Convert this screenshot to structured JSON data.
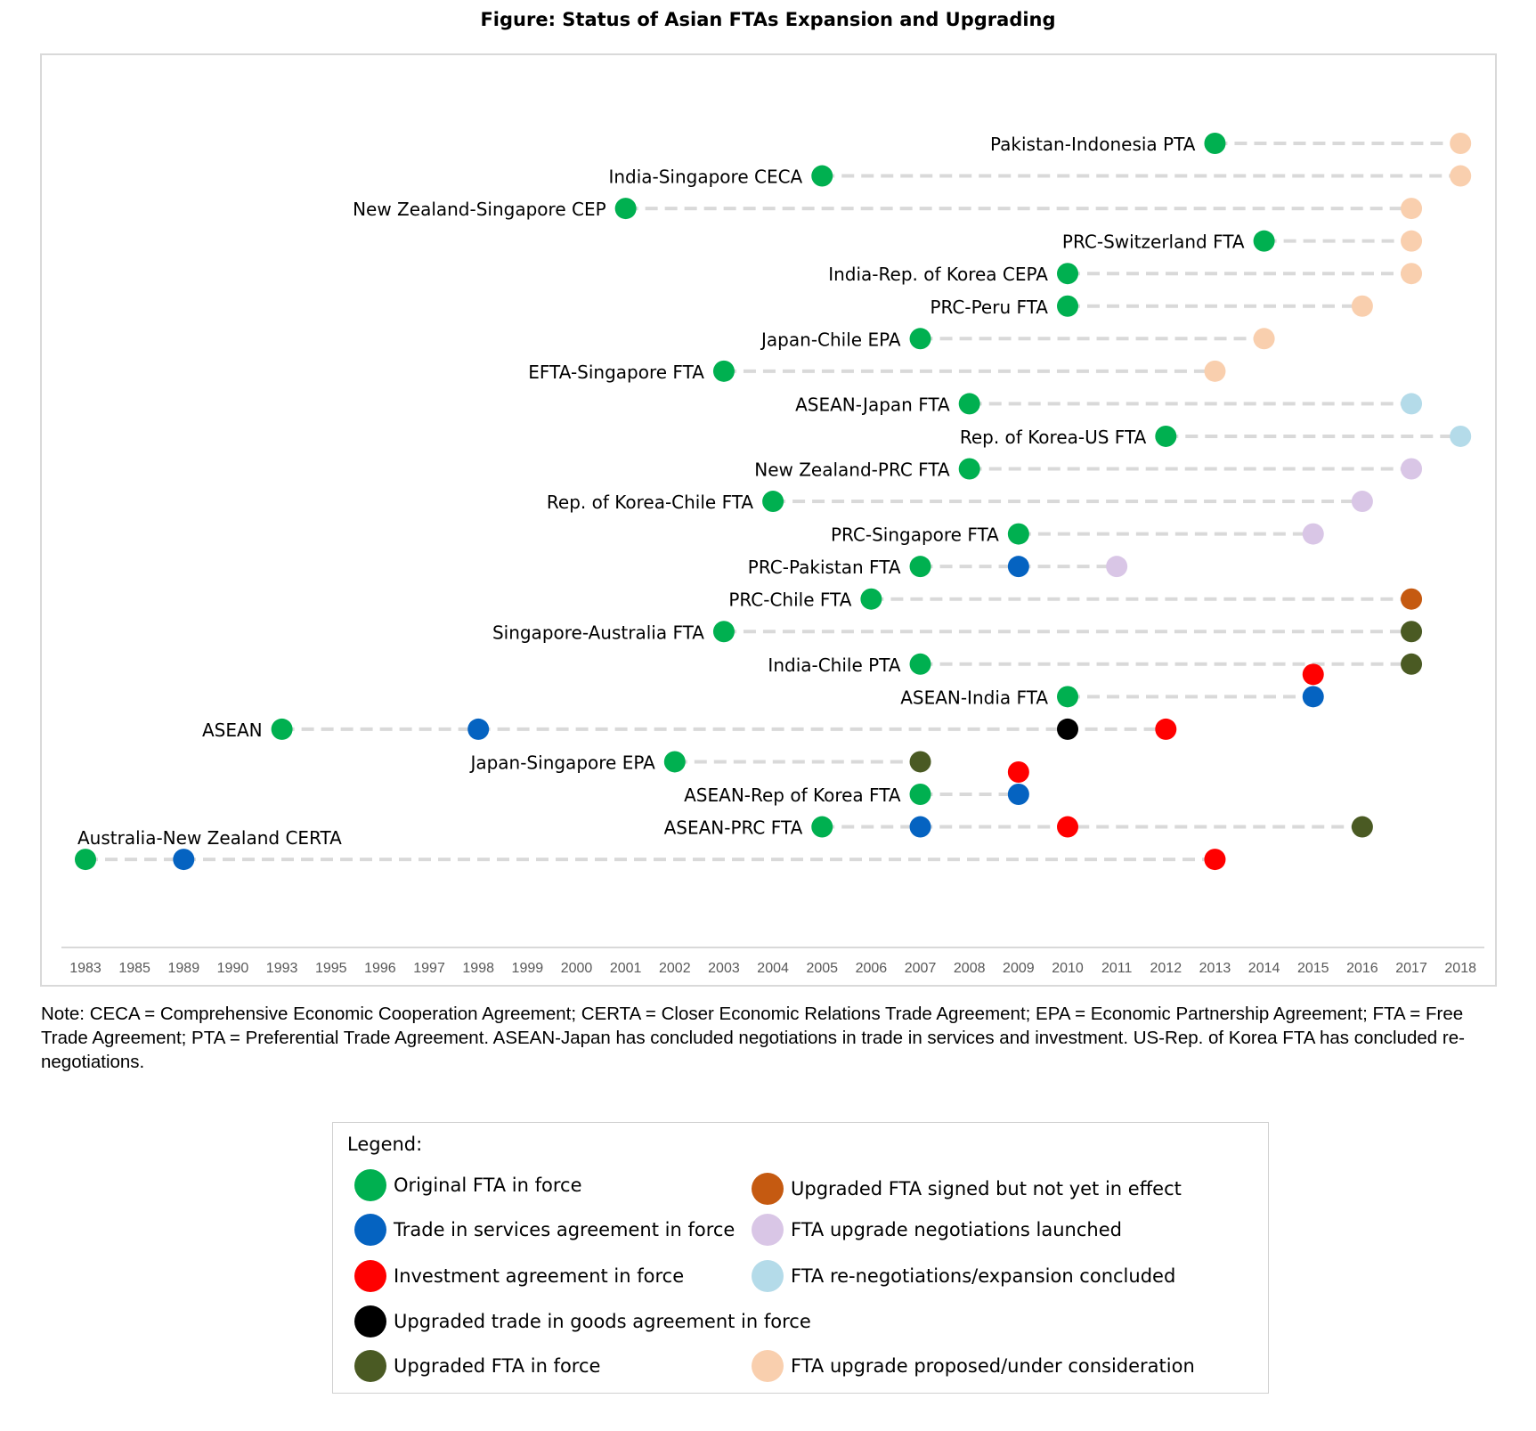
{
  "figure_title": "Figure: Status of Asian FTAs Expansion and Upgrading",
  "note": "Note: CECA = Comprehensive Economic Cooperation Agreement; CERTA =  Closer Economic Relations Trade Agreement; EPA =  Economic Partnership Agreement; FTA = Free Trade Agreement; PTA = Preferential Trade Agreement. ASEAN-Japan has concluded negotiations in trade in services and investment. US-Rep. of Korea FTA has concluded re-negotiations.",
  "legend": {
    "title": "Legend:",
    "items": [
      {
        "key": "original",
        "label": "Original FTA in force",
        "color": "#00b050"
      },
      {
        "key": "services",
        "label": "Trade in services agreement in force",
        "color": "#0563c1"
      },
      {
        "key": "investment",
        "label": "Investment agreement in force",
        "color": "#ff0000"
      },
      {
        "key": "goods_upgrade",
        "label": "Upgraded trade in goods agreement in force",
        "color": "#000000"
      },
      {
        "key": "upgraded",
        "label": "Upgraded FTA in force",
        "color": "#4a5a23"
      },
      {
        "key": "signed",
        "label": "Upgraded FTA signed but not yet in effect",
        "color": "#c55a11"
      },
      {
        "key": "launched",
        "label": "FTA upgrade negotiations launched",
        "color": "#d9c6e6"
      },
      {
        "key": "concluded",
        "label": "FTA re-negotiations/expansion concluded",
        "color": "#b4dbe9"
      },
      {
        "key": "proposed",
        "label": "FTA upgrade proposed/under consideration",
        "color": "#f9cfae"
      }
    ]
  },
  "chart_data": {
    "type": "scatter",
    "title": "Figure: Status of Asian FTAs Expansion and Upgrading",
    "x_categories": [
      "1983",
      "1985",
      "1989",
      "1990",
      "1993",
      "1995",
      "1996",
      "1997",
      "1998",
      "1999",
      "2000",
      "2001",
      "2002",
      "2003",
      "2004",
      "2005",
      "2006",
      "2007",
      "2008",
      "2009",
      "2010",
      "2011",
      "2012",
      "2013",
      "2014",
      "2015",
      "2016",
      "2017",
      "2018"
    ],
    "grid": false,
    "legend_position": "bottom",
    "agreements": [
      {
        "name": "Pakistan-Indonesia PTA",
        "events": [
          {
            "year": "2013",
            "status": "original"
          },
          {
            "year": "2018",
            "status": "proposed"
          }
        ]
      },
      {
        "name": "India-Singapore CECA",
        "events": [
          {
            "year": "2005",
            "status": "original"
          },
          {
            "year": "2018",
            "status": "proposed"
          }
        ]
      },
      {
        "name": "New Zealand-Singapore CEP",
        "events": [
          {
            "year": "2001",
            "status": "original"
          },
          {
            "year": "2017",
            "status": "proposed"
          }
        ]
      },
      {
        "name": "PRC-Switzerland FTA",
        "events": [
          {
            "year": "2014",
            "status": "original"
          },
          {
            "year": "2017",
            "status": "proposed"
          }
        ]
      },
      {
        "name": "India-Rep. of Korea CEPA",
        "events": [
          {
            "year": "2010",
            "status": "original"
          },
          {
            "year": "2017",
            "status": "proposed"
          }
        ]
      },
      {
        "name": "PRC-Peru FTA",
        "events": [
          {
            "year": "2010",
            "status": "original"
          },
          {
            "year": "2016",
            "status": "proposed"
          }
        ]
      },
      {
        "name": "Japan-Chile EPA",
        "events": [
          {
            "year": "2007",
            "status": "original"
          },
          {
            "year": "2014",
            "status": "proposed"
          }
        ]
      },
      {
        "name": "EFTA-Singapore FTA",
        "events": [
          {
            "year": "2003",
            "status": "original"
          },
          {
            "year": "2013",
            "status": "proposed"
          }
        ]
      },
      {
        "name": "ASEAN-Japan FTA",
        "events": [
          {
            "year": "2008",
            "status": "original"
          },
          {
            "year": "2017",
            "status": "concluded"
          }
        ]
      },
      {
        "name": "Rep. of Korea-US FTA",
        "events": [
          {
            "year": "2012",
            "status": "original"
          },
          {
            "year": "2018",
            "status": "concluded"
          }
        ]
      },
      {
        "name": "New Zealand-PRC FTA",
        "events": [
          {
            "year": "2008",
            "status": "original"
          },
          {
            "year": "2017",
            "status": "launched"
          }
        ]
      },
      {
        "name": "Rep. of Korea-Chile FTA",
        "events": [
          {
            "year": "2004",
            "status": "original"
          },
          {
            "year": "2016",
            "status": "launched"
          }
        ]
      },
      {
        "name": "PRC-Singapore FTA",
        "events": [
          {
            "year": "2009",
            "status": "original"
          },
          {
            "year": "2015",
            "status": "launched"
          }
        ]
      },
      {
        "name": "PRC-Pakistan FTA",
        "events": [
          {
            "year": "2007",
            "status": "original"
          },
          {
            "year": "2009",
            "status": "services"
          },
          {
            "year": "2011",
            "status": "launched"
          }
        ]
      },
      {
        "name": "PRC-Chile FTA",
        "events": [
          {
            "year": "2006",
            "status": "original"
          },
          {
            "year": "2017",
            "status": "signed"
          }
        ]
      },
      {
        "name": "Singapore-Australia FTA",
        "events": [
          {
            "year": "2003",
            "status": "original"
          },
          {
            "year": "2017",
            "status": "upgraded"
          }
        ]
      },
      {
        "name": "India-Chile PTA",
        "events": [
          {
            "year": "2007",
            "status": "original"
          },
          {
            "year": "2017",
            "status": "upgraded"
          }
        ]
      },
      {
        "name": "ASEAN-India FTA",
        "events": [
          {
            "year": "2010",
            "status": "original"
          },
          {
            "year": "2015",
            "status": "services"
          },
          {
            "year": "2015",
            "status": "investment"
          }
        ]
      },
      {
        "name": "ASEAN",
        "events": [
          {
            "year": "1993",
            "status": "original"
          },
          {
            "year": "1998",
            "status": "services"
          },
          {
            "year": "2010",
            "status": "goods_upgrade"
          },
          {
            "year": "2012",
            "status": "investment"
          }
        ]
      },
      {
        "name": "Japan-Singapore EPA",
        "events": [
          {
            "year": "2002",
            "status": "original"
          },
          {
            "year": "2007",
            "status": "upgraded"
          }
        ]
      },
      {
        "name": "ASEAN-Rep of Korea FTA",
        "events": [
          {
            "year": "2007",
            "status": "original"
          },
          {
            "year": "2009",
            "status": "services"
          },
          {
            "year": "2009",
            "status": "investment"
          }
        ]
      },
      {
        "name": "ASEAN-PRC FTA",
        "events": [
          {
            "year": "2005",
            "status": "original"
          },
          {
            "year": "2007",
            "status": "services"
          },
          {
            "year": "2010",
            "status": "investment"
          },
          {
            "year": "2016",
            "status": "upgraded"
          }
        ]
      },
      {
        "name": "Australia-New Zealand CERTA",
        "events": [
          {
            "year": "1983",
            "status": "original"
          },
          {
            "year": "1989",
            "status": "services"
          },
          {
            "year": "2013",
            "status": "investment"
          }
        ]
      }
    ]
  }
}
